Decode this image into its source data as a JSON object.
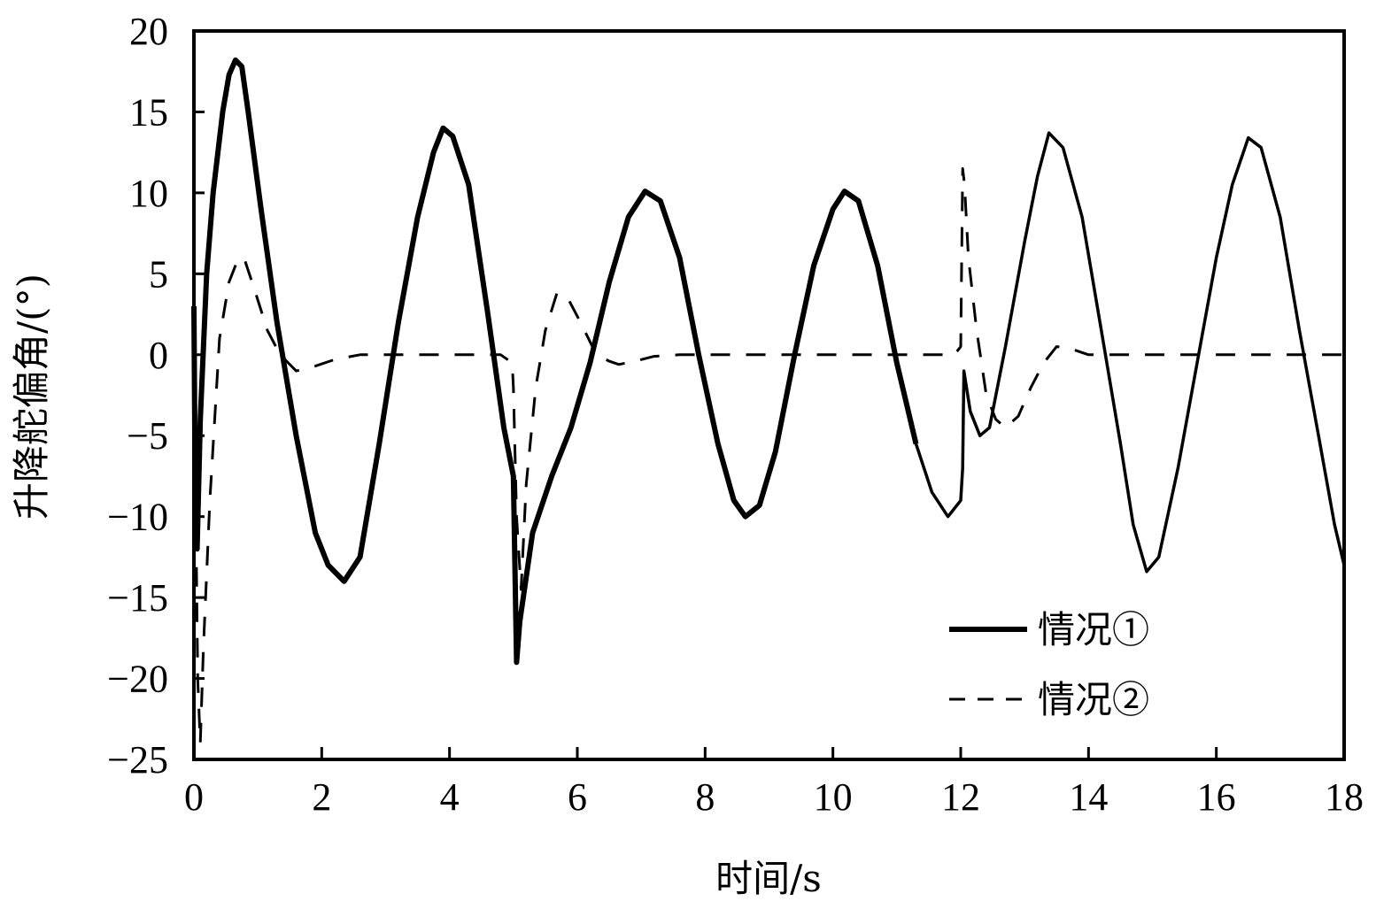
{
  "chart_data": {
    "type": "line",
    "title": "",
    "xlabel": "时间/s",
    "ylabel": "升降舵偏角/(°)",
    "xlim": [
      0,
      18
    ],
    "ylim": [
      -25,
      20
    ],
    "xticks": [
      0,
      2,
      4,
      6,
      8,
      10,
      12,
      14,
      16,
      18
    ],
    "yticks": [
      20,
      15,
      10,
      5,
      0,
      -5,
      -10,
      -15,
      -20,
      -25
    ],
    "ytick_labels": [
      "20",
      "15",
      "10",
      "5",
      "0",
      "−5",
      "−10",
      "−15",
      "−20",
      "−25"
    ],
    "grid": false,
    "legend_position": "lower right (inside)",
    "series": [
      {
        "name": "情况①",
        "style": "solid",
        "color": "#000000",
        "x": [
          0.0,
          0.02,
          0.05,
          0.1,
          0.2,
          0.3,
          0.45,
          0.55,
          0.65,
          0.75,
          0.85,
          1.05,
          1.3,
          1.6,
          1.9,
          2.1,
          2.35,
          2.6,
          2.9,
          3.2,
          3.5,
          3.75,
          3.9,
          4.05,
          4.3,
          4.6,
          4.85,
          5.0,
          5.05,
          5.1,
          5.3,
          5.6,
          5.9,
          6.2,
          6.5,
          6.8,
          7.06,
          7.3,
          7.6,
          7.9,
          8.2,
          8.45,
          8.63,
          8.85,
          9.1,
          9.4,
          9.7,
          10.0,
          10.18,
          10.4,
          10.7,
          11.0,
          11.3,
          11.55,
          11.8,
          12.0,
          12.03,
          12.05,
          12.15,
          12.3,
          12.45,
          12.7,
          13.0,
          13.2,
          13.38,
          13.6,
          13.9,
          14.2,
          14.5,
          14.7,
          14.91,
          15.1,
          15.4,
          15.7,
          16.0,
          16.25,
          16.5,
          16.7,
          17.0,
          17.3,
          17.6,
          17.85,
          18.0
        ],
        "values": [
          3.0,
          -8.0,
          -12.0,
          -4.0,
          5.0,
          10.0,
          15.0,
          17.3,
          18.2,
          17.8,
          15.0,
          9.0,
          2.0,
          -5.0,
          -11.0,
          -13.0,
          -14.0,
          -12.5,
          -5.5,
          2.0,
          8.5,
          12.5,
          14.0,
          13.5,
          10.5,
          2.5,
          -4.5,
          -7.5,
          -19.0,
          -16.5,
          -11.0,
          -7.5,
          -4.5,
          -0.5,
          4.5,
          8.5,
          10.1,
          9.5,
          6.0,
          0.0,
          -5.5,
          -9.0,
          -10.0,
          -9.3,
          -6.0,
          0.0,
          5.5,
          9.0,
          10.1,
          9.5,
          5.5,
          -0.5,
          -5.5,
          -8.5,
          -10.0,
          -9.0,
          -7.0,
          -1.0,
          -3.5,
          -5.0,
          -4.5,
          0.5,
          7.0,
          11.0,
          13.7,
          12.8,
          8.5,
          1.5,
          -5.5,
          -10.5,
          -13.4,
          -12.5,
          -7.0,
          -0.5,
          6.0,
          10.5,
          13.4,
          12.8,
          8.5,
          1.5,
          -5.0,
          -10.5,
          -13.0
        ]
      },
      {
        "name": "情况②",
        "style": "dashed",
        "color": "#000000",
        "x": [
          0.0,
          0.03,
          0.06,
          0.1,
          0.15,
          0.25,
          0.4,
          0.55,
          0.7,
          0.8,
          0.95,
          1.15,
          1.35,
          1.6,
          1.9,
          2.2,
          2.6,
          3.0,
          3.5,
          4.0,
          4.5,
          4.8,
          4.98,
          5.0,
          5.05,
          5.12,
          5.2,
          5.35,
          5.5,
          5.68,
          5.85,
          6.05,
          6.3,
          6.5,
          6.65,
          6.9,
          7.2,
          7.6,
          8.0,
          9.0,
          10.0,
          11.0,
          11.9,
          12.0,
          12.03,
          12.06,
          12.12,
          12.25,
          12.4,
          12.55,
          12.7,
          12.9,
          13.1,
          13.3,
          13.5,
          13.7,
          14.0,
          14.3,
          15.0,
          16.0,
          17.0,
          18.0
        ],
        "values": [
          0.0,
          -10.0,
          -20.0,
          -24.0,
          -18.0,
          -9.0,
          1.0,
          4.5,
          6.0,
          5.8,
          4.0,
          1.5,
          0.0,
          -1.0,
          -0.7,
          -0.3,
          0.0,
          0.0,
          0.0,
          0.0,
          0.0,
          0.0,
          -0.5,
          -2.0,
          -10.0,
          -14.5,
          -8.0,
          -2.0,
          1.5,
          3.8,
          3.5,
          2.0,
          0.0,
          -0.4,
          -0.6,
          -0.4,
          -0.1,
          0.0,
          0.0,
          0.0,
          0.0,
          0.0,
          0.0,
          0.5,
          11.5,
          10.5,
          6.0,
          1.5,
          -2.5,
          -4.0,
          -4.5,
          -3.8,
          -2.0,
          -0.5,
          0.5,
          0.4,
          0.0,
          0.0,
          0.0,
          0.0,
          0.0,
          0.0
        ]
      }
    ]
  },
  "axes": {
    "xlabel": "时间/s",
    "ylabel": "升降舵偏角/(°)"
  },
  "legend": {
    "items": [
      {
        "label": "情况①",
        "style": "solid"
      },
      {
        "label": "情况②",
        "style": "dashed"
      }
    ]
  }
}
